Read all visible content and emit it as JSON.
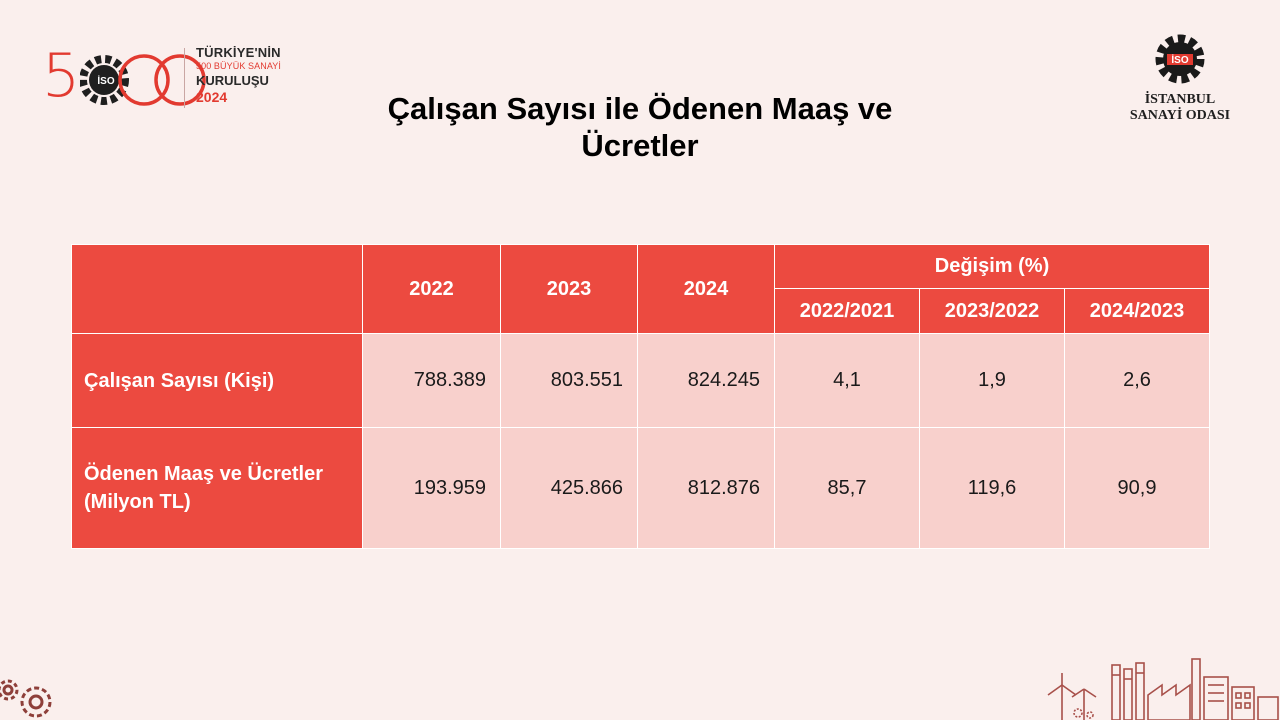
{
  "logo_500": {
    "number": "500",
    "badge": "İSO",
    "line1": "TÜRKİYE'NİN",
    "line2": "500 BÜYÜK SANAYİ",
    "line3": "KURULUŞU",
    "year": "2024"
  },
  "logo_iso": {
    "badge": "İSO",
    "line1": "İSTANBUL",
    "line2": "SANAYİ ODASI"
  },
  "title": {
    "line1": "Çalışan Sayısı ile Ödenen Maaş ve",
    "line2": "Ücretler"
  },
  "colors": {
    "accent": "#ec4a40",
    "cell_bg": "#f8d0cc",
    "page_bg": "#faefed"
  },
  "table": {
    "years": [
      "2022",
      "2023",
      "2024"
    ],
    "change_header": "Değişim (%)",
    "change_periods": [
      "2022/2021",
      "2023/2022",
      "2024/2023"
    ],
    "rows": [
      {
        "label_line1": "Çalışan Sayısı (Kişi)",
        "label_line2": "",
        "values": [
          "788.389",
          "803.551",
          "824.245"
        ],
        "changes": [
          "4,1",
          "1,9",
          "2,6"
        ]
      },
      {
        "label_line1": "Ödenen Maaş ve Ücretler",
        "label_line2": "(Milyon TL)",
        "values": [
          "193.959",
          "425.866",
          "812.876"
        ],
        "changes": [
          "85,7",
          "119,6",
          "90,9"
        ]
      }
    ]
  }
}
